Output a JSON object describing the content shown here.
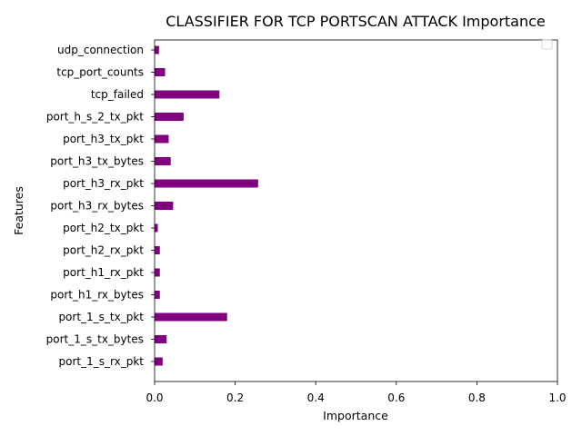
{
  "chart_data": {
    "type": "bar",
    "orientation": "horizontal",
    "title": "CLASSIFIER FOR TCP PORTSCAN ATTACK Importance",
    "xlabel": "Importance",
    "ylabel": "Features",
    "xlim": [
      0,
      1
    ],
    "xticks": [
      "0.0",
      "0.2",
      "0.4",
      "0.6",
      "0.8",
      "1.0"
    ],
    "xtick_values": [
      0,
      0.2,
      0.4,
      0.6,
      0.8,
      1.0
    ],
    "categories": [
      "port_1_s_rx_pkt",
      "port_1_s_tx_bytes",
      "port_1_s_tx_pkt",
      "port_h1_rx_bytes",
      "port_h1_rx_pkt",
      "port_h2_rx_pkt",
      "port_h2_tx_pkt",
      "port_h3_rx_bytes",
      "port_h3_rx_pkt",
      "port_h3_tx_bytes",
      "port_h3_tx_pkt",
      "port_h_s_2_tx_pkt",
      "tcp_failed",
      "tcp_port_counts",
      "udp_connection"
    ],
    "values": [
      0.02,
      0.03,
      0.18,
      0.013,
      0.013,
      0.013,
      0.008,
      0.046,
      0.257,
      0.04,
      0.035,
      0.072,
      0.161,
      0.026,
      0.011
    ],
    "bar_color": "#800080",
    "legend": "top-right, empty",
    "grid": false
  }
}
